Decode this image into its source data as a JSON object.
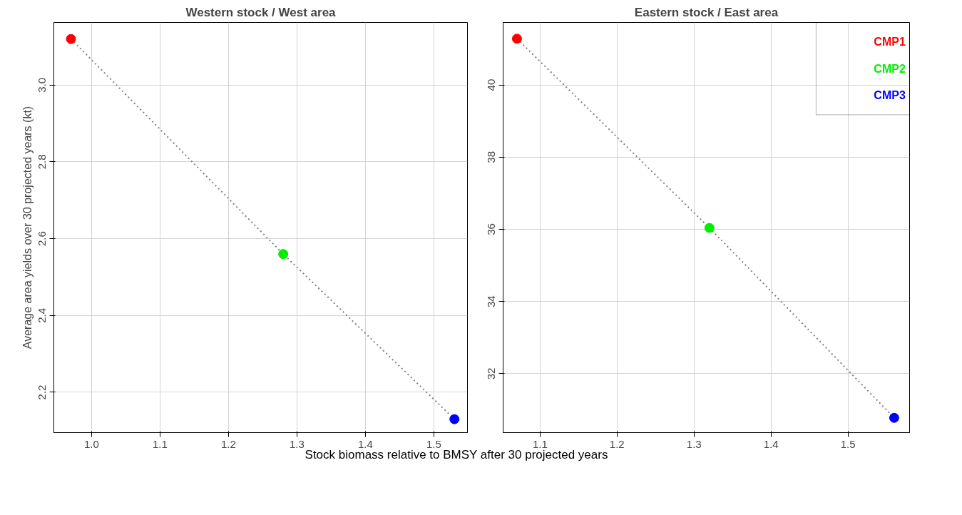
{
  "chart_data": [
    {
      "type": "scatter",
      "title": "Western stock / West area",
      "ylabel": "Average area yields over 30 projected years (kt)",
      "xlabel": "Stock biomass relative to BMSY after 30 projected years",
      "xlim": [
        0.945,
        1.549
      ],
      "ylim": [
        2.095,
        3.163
      ],
      "xticks": [
        {
          "value": 1,
          "label": "1.0"
        },
        1.1,
        1.2,
        1.3,
        1.4,
        1.5
      ],
      "yticks": [
        2.2,
        2.4,
        2.6,
        2.8,
        {
          "value": 3,
          "label": "3.0"
        }
      ],
      "grid": true,
      "marker": "circle",
      "series": [
        {
          "type": "line",
          "color": "#808080",
          "line_style": "dotted",
          "marker": "none",
          "x": [
            0.97,
            1.28,
            1.53
          ],
          "values": [
            3.12,
            2.56,
            2.13
          ]
        },
        {
          "color": "#ff0000",
          "x": [
            0.97
          ],
          "values": [
            3.12
          ]
        },
        {
          "color": "#00ee00",
          "x": [
            1.28
          ],
          "values": [
            2.56
          ]
        },
        {
          "color": "#0000ff",
          "x": [
            1.53
          ],
          "values": [
            2.13
          ]
        }
      ]
    },
    {
      "type": "scatter",
      "title": "Eastern stock / East area",
      "xlim": [
        1.052,
        1.58
      ],
      "ylim": [
        30.37,
        41.73
      ],
      "xticks": [
        1.1,
        1.2,
        1.3,
        1.4,
        1.5
      ],
      "yticks": [
        32,
        34,
        36,
        38,
        40
      ],
      "grid": true,
      "marker": "circle",
      "legend": "top right",
      "series": [
        {
          "type": "line",
          "color": "#808080",
          "line_style": "dotted",
          "marker": "none",
          "x": [
            1.07,
            1.32,
            1.56
          ],
          "values": [
            41.28,
            36.04,
            30.78
          ]
        },
        {
          "name": "CMP1",
          "color": "#ff0000",
          "x": [
            1.07
          ],
          "values": [
            41.28
          ]
        },
        {
          "name": "CMP2",
          "color": "#00ee00",
          "x": [
            1.32
          ],
          "values": [
            36.04
          ]
        },
        {
          "name": "CMP3",
          "color": "#0000ff",
          "x": [
            1.56
          ],
          "values": [
            30.78
          ]
        }
      ]
    }
  ]
}
